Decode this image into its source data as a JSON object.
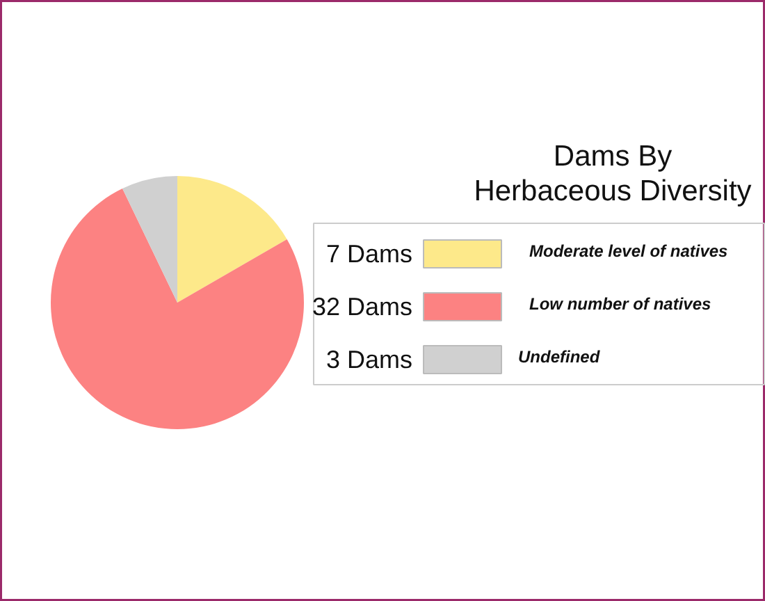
{
  "chart_data": {
    "type": "pie",
    "title": "Dams By Herbaceous Diversity",
    "categories": [
      "Moderate level of natives",
      "Low number of natives",
      "Undefined"
    ],
    "values": [
      7,
      32,
      3
    ],
    "colors": [
      "#fde98a",
      "#fc8282",
      "#d0d0d0"
    ],
    "value_labels": [
      "7 Dams",
      "32 Dams",
      "3 Dams"
    ],
    "legend": "right"
  }
}
